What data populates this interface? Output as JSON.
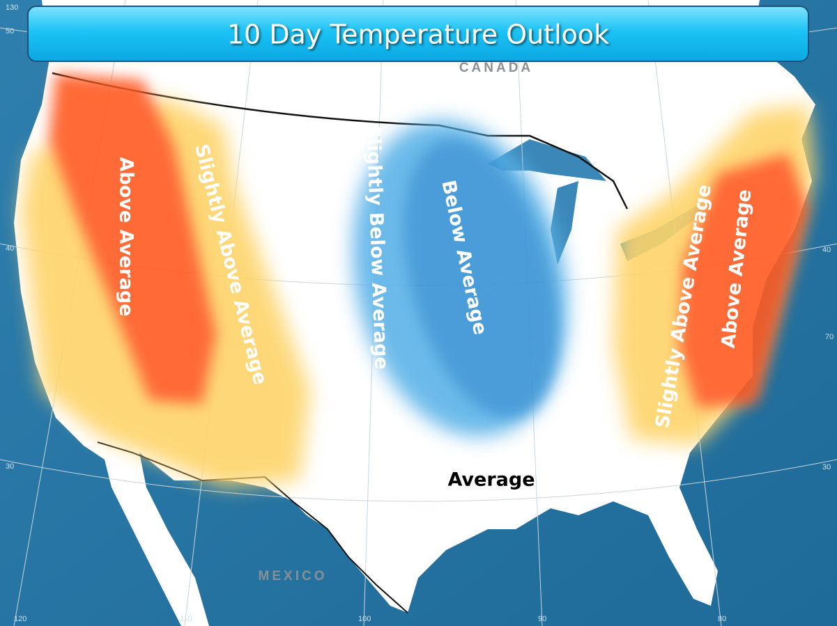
{
  "title": "10 Day Temperature Outlook",
  "countries": {
    "canada": "CANADA",
    "mexico": "MEXICO"
  },
  "regions": [
    {
      "label": "Above Average"
    },
    {
      "label": "Slightly Above Average"
    },
    {
      "label": "Slightly Below Average"
    },
    {
      "label": "Below Average"
    },
    {
      "label": "Slightly Above Average"
    },
    {
      "label": "Above Average"
    },
    {
      "label": "Average"
    }
  ],
  "graticule": [
    "130",
    "50",
    "40",
    "30",
    "120",
    "110",
    "100",
    "90",
    "80",
    "70",
    "40",
    "30"
  ]
}
